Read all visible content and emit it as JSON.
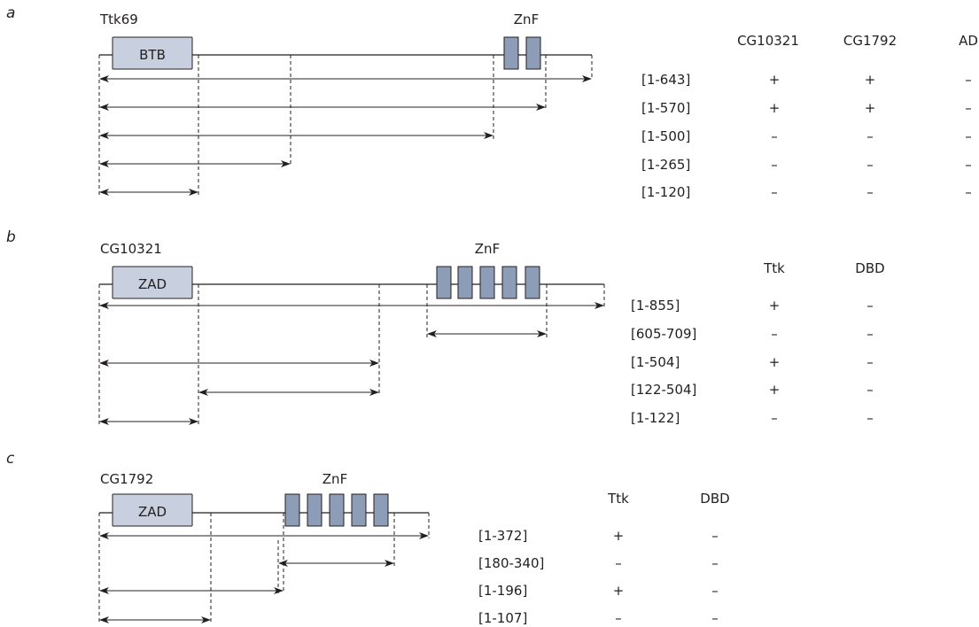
{
  "panels": [
    {
      "letter": "a",
      "protein": "Ttk69",
      "domain1": "BTB",
      "znf_label": "ZnF",
      "headers": [
        "CG10321",
        "CG1792",
        "AD"
      ],
      "rows": [
        {
          "range": "[1-643]",
          "vals": [
            "+",
            "+",
            "–"
          ]
        },
        {
          "range": "[1-570]",
          "vals": [
            "+",
            "+",
            "–"
          ]
        },
        {
          "range": "[1-500]",
          "vals": [
            "–",
            "–",
            "–"
          ]
        },
        {
          "range": "[1-265]",
          "vals": [
            "–",
            "–",
            "–"
          ]
        },
        {
          "range": "[1-120]",
          "vals": [
            "–",
            "–",
            "–"
          ]
        }
      ]
    },
    {
      "letter": "b",
      "protein": "CG10321",
      "domain1": "ZAD",
      "znf_label": "ZnF",
      "headers": [
        "Ttk",
        "DBD"
      ],
      "rows": [
        {
          "range": "[1-855]",
          "vals": [
            "+",
            "–"
          ]
        },
        {
          "range": "[605-709]",
          "vals": [
            "–",
            "–"
          ]
        },
        {
          "range": "[1-504]",
          "vals": [
            "+",
            "–"
          ]
        },
        {
          "range": "[122-504]",
          "vals": [
            "+",
            "–"
          ]
        },
        {
          "range": "[1-122]",
          "vals": [
            "–",
            "–"
          ]
        }
      ]
    },
    {
      "letter": "c",
      "protein": "CG1792",
      "domain1": "ZAD",
      "znf_label": "ZnF",
      "headers": [
        "Ttk",
        "DBD"
      ],
      "rows": [
        {
          "range": "[1-372]",
          "vals": [
            "+",
            "–"
          ]
        },
        {
          "range": "[180-340]",
          "vals": [
            "–",
            "–"
          ]
        },
        {
          "range": "[1-196]",
          "vals": [
            "+",
            "–"
          ]
        },
        {
          "range": "[1-107]",
          "vals": [
            "–",
            "–"
          ]
        }
      ]
    }
  ],
  "colors": {
    "domain_fill": "#c8d0e0",
    "znf_fill": "#8d9db8",
    "line": "#231f20"
  }
}
